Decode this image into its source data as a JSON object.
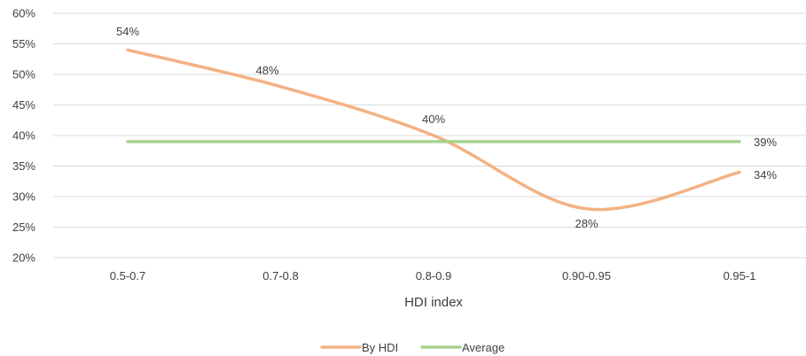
{
  "chart_data": {
    "type": "line",
    "title": "",
    "xlabel": "HDI index",
    "ylabel": "",
    "categories": [
      "0.5-0.7",
      "0.7-0.8",
      "0.8-0.9",
      "0.90-0.95",
      "0.95-1"
    ],
    "ylim": [
      0.2,
      0.6
    ],
    "yticks": [
      0.2,
      0.25,
      0.3,
      0.35,
      0.4,
      0.45,
      0.5,
      0.55,
      0.6
    ],
    "ytick_labels": [
      "20%",
      "25%",
      "30%",
      "35%",
      "40%",
      "45%",
      "50%",
      "55%",
      "60%"
    ],
    "grid": "horizontal",
    "legend_position": "bottom",
    "series": [
      {
        "name": "By HDI",
        "values": [
          0.54,
          0.48,
          0.4,
          0.28,
          0.34
        ],
        "labels": [
          "54%",
          "48%",
          "40%",
          "28%",
          "34%"
        ],
        "color": "#F4B183",
        "smooth": true
      },
      {
        "name": "Average",
        "values": [
          0.39,
          0.39,
          0.39,
          0.39,
          0.39
        ],
        "labels": [
          "",
          "",
          "",
          "",
          "39%"
        ],
        "color": "#A9D18E",
        "smooth": false
      }
    ]
  }
}
